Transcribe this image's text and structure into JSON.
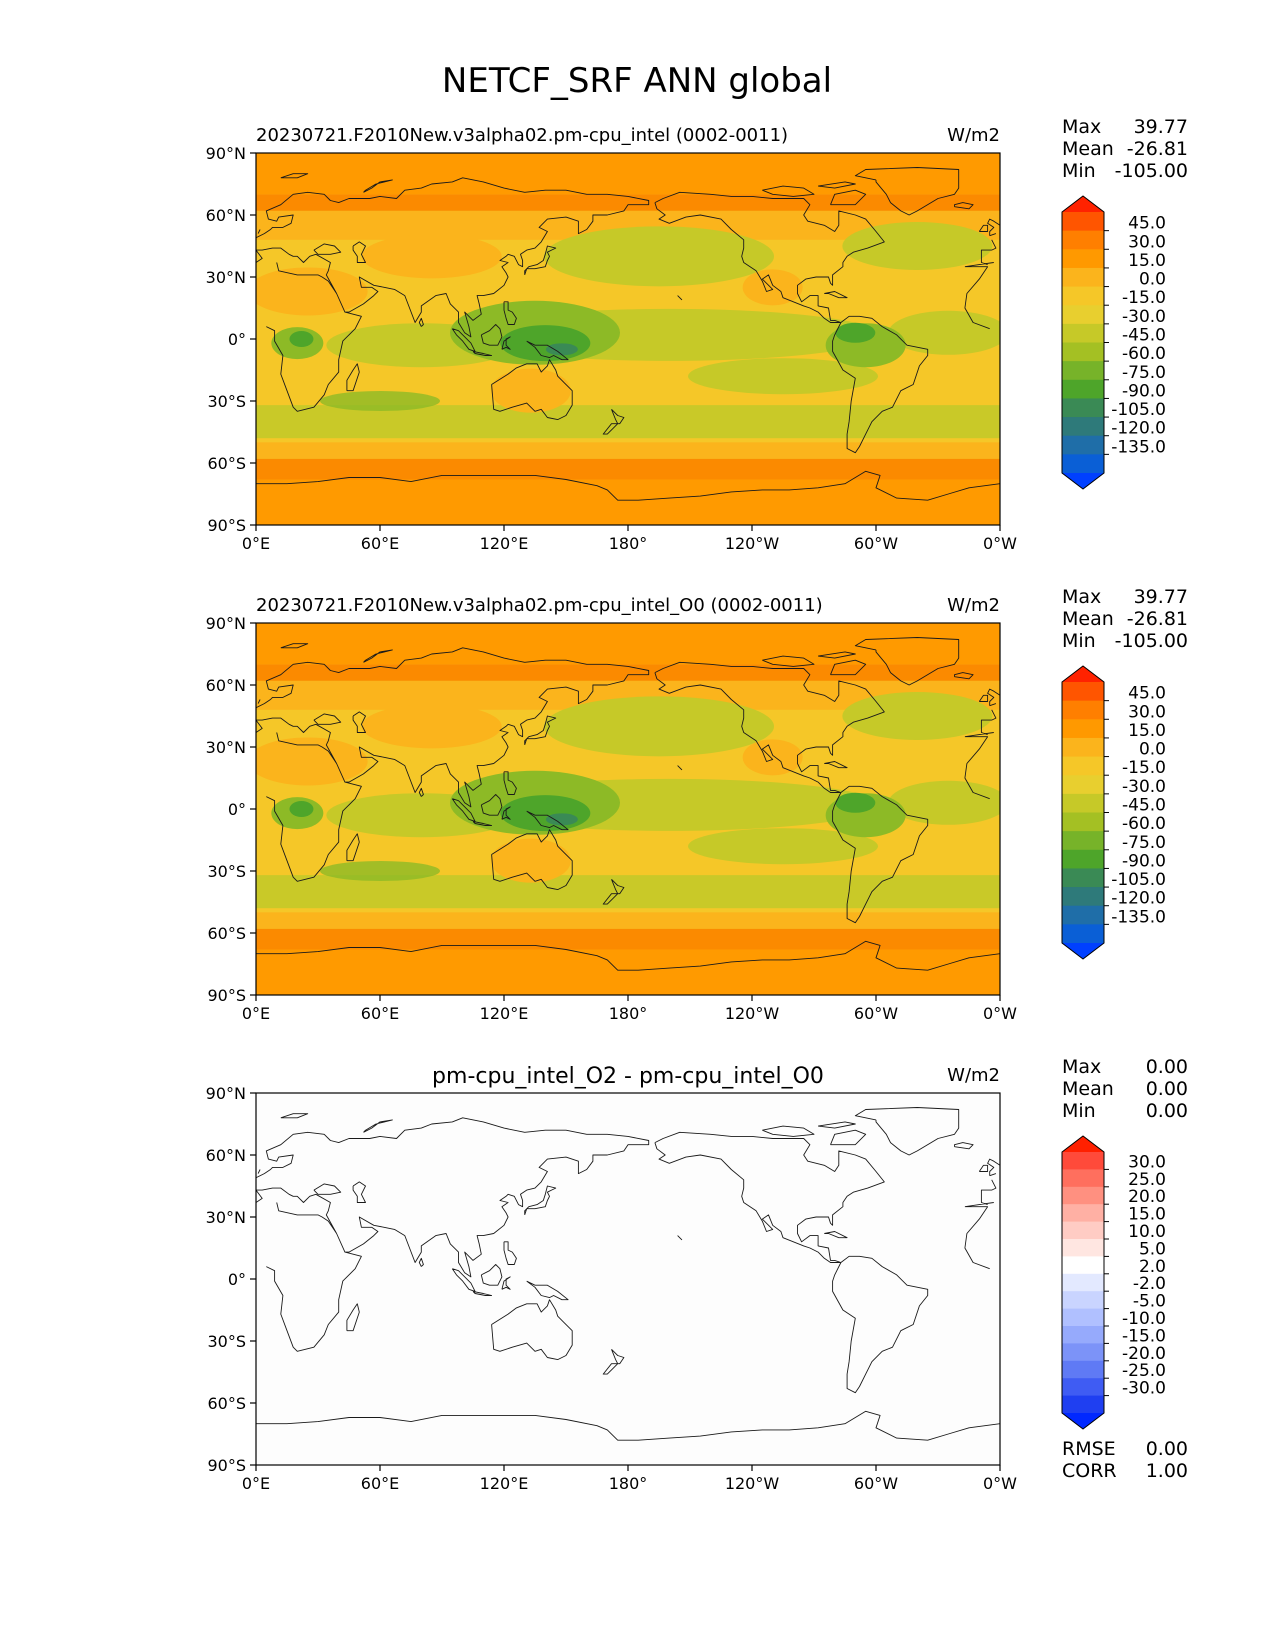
{
  "figure_title": "NETCF_SRF ANN global",
  "chart_data": [
    {
      "type": "heatmap",
      "title": "20230721.F2010New.v3alpha02.pm-cpu_intel (0002-0011)",
      "units": "W/m2",
      "x_ticks": [
        "0°E",
        "60°E",
        "120°E",
        "180°",
        "120°W",
        "60°W",
        "0°W"
      ],
      "y_ticks": [
        "90°N",
        "60°N",
        "30°N",
        "0°",
        "30°S",
        "60°S",
        "90°S"
      ],
      "xlim": [
        0,
        360
      ],
      "ylim": [
        -90,
        90
      ],
      "stats": [
        {
          "label": "Max",
          "value": "39.77"
        },
        {
          "label": "Mean",
          "value": "-26.81"
        },
        {
          "label": "Min",
          "value": "-105.00"
        }
      ],
      "colorbar_levels": [
        "45.0",
        "30.0",
        "15.0",
        "0.0",
        "-15.0",
        "-30.0",
        "-45.0",
        "-60.0",
        "-75.0",
        "-90.0",
        "-105.0",
        "-120.0",
        "-135.0"
      ],
      "colorbar_colors": [
        "#ff2200",
        "#ff5500",
        "#ff7f00",
        "#ff9900",
        "#fbb41c",
        "#f5c728",
        "#e8cf2f",
        "#c6c928",
        "#a4c023",
        "#77b329",
        "#4ea52a",
        "#3a8a55",
        "#2e7a7a",
        "#1f6ea8",
        "#0a5fd6",
        "#0040ff"
      ],
      "field_colors": {
        "polar": "#ff9a00",
        "midlat_band": "#fb8a00",
        "subpolar": "#fbb41c",
        "subtropics": "#f5c728",
        "trop_ocean": "#c6c928",
        "warm_pool": "#8dba26",
        "deep_convection": "#4ea52a",
        "core": "#3a8a55",
        "land_dry": "#fbb41c"
      }
    },
    {
      "type": "heatmap",
      "title": "20230721.F2010New.v3alpha02.pm-cpu_intel_O0 (0002-0011)",
      "units": "W/m2",
      "x_ticks": [
        "0°E",
        "60°E",
        "120°E",
        "180°",
        "120°W",
        "60°W",
        "0°W"
      ],
      "y_ticks": [
        "90°N",
        "60°N",
        "30°N",
        "0°",
        "30°S",
        "60°S",
        "90°S"
      ],
      "xlim": [
        0,
        360
      ],
      "ylim": [
        -90,
        90
      ],
      "stats": [
        {
          "label": "Max",
          "value": "39.77"
        },
        {
          "label": "Mean",
          "value": "-26.81"
        },
        {
          "label": "Min",
          "value": "-105.00"
        }
      ],
      "colorbar_levels": [
        "45.0",
        "30.0",
        "15.0",
        "0.0",
        "-15.0",
        "-30.0",
        "-45.0",
        "-60.0",
        "-75.0",
        "-90.0",
        "-105.0",
        "-120.0",
        "-135.0"
      ],
      "colorbar_colors": [
        "#ff2200",
        "#ff5500",
        "#ff7f00",
        "#ff9900",
        "#fbb41c",
        "#f5c728",
        "#e8cf2f",
        "#c6c928",
        "#a4c023",
        "#77b329",
        "#4ea52a",
        "#3a8a55",
        "#2e7a7a",
        "#1f6ea8",
        "#0a5fd6",
        "#0040ff"
      ],
      "field_colors": {
        "polar": "#ff9a00",
        "midlat_band": "#fb8a00",
        "subpolar": "#fbb41c",
        "subtropics": "#f5c728",
        "trop_ocean": "#c6c928",
        "warm_pool": "#8dba26",
        "deep_convection": "#4ea52a",
        "core": "#3a8a55",
        "land_dry": "#fbb41c"
      }
    },
    {
      "type": "heatmap",
      "title": "pm-cpu_intel_O2 - pm-cpu_intel_O0",
      "units": "W/m2",
      "x_ticks": [
        "0°E",
        "60°E",
        "120°E",
        "180°",
        "120°W",
        "60°W",
        "0°W"
      ],
      "y_ticks": [
        "90°N",
        "60°N",
        "30°N",
        "0°",
        "30°S",
        "60°S",
        "90°S"
      ],
      "xlim": [
        0,
        360
      ],
      "ylim": [
        -90,
        90
      ],
      "stats": [
        {
          "label": "Max",
          "value": "0.00"
        },
        {
          "label": "Mean",
          "value": "0.00"
        },
        {
          "label": "Min",
          "value": "0.00"
        }
      ],
      "colorbar_levels": [
        "30.0",
        "25.0",
        "20.0",
        "15.0",
        "10.0",
        "5.0",
        "2.0",
        "-2.0",
        "-5.0",
        "-10.0",
        "-15.0",
        "-20.0",
        "-25.0",
        "-30.0"
      ],
      "colorbar_colors": [
        "#ff2000",
        "#ff4a3a",
        "#ff6f5e",
        "#ff9080",
        "#ffb0a4",
        "#ffccc4",
        "#ffe6e1",
        "#ffffff",
        "#e3e9ff",
        "#c9d4ff",
        "#b0c0ff",
        "#96aafc",
        "#7c93f8",
        "#5f7af5",
        "#3f5cf3",
        "#1f3ff1",
        "#0028ff"
      ],
      "field_colors": {
        "uniform": "#fdfdfd"
      },
      "extra_stats": [
        {
          "label": "RMSE",
          "value": "0.00"
        },
        {
          "label": "CORR",
          "value": "1.00"
        }
      ]
    }
  ]
}
